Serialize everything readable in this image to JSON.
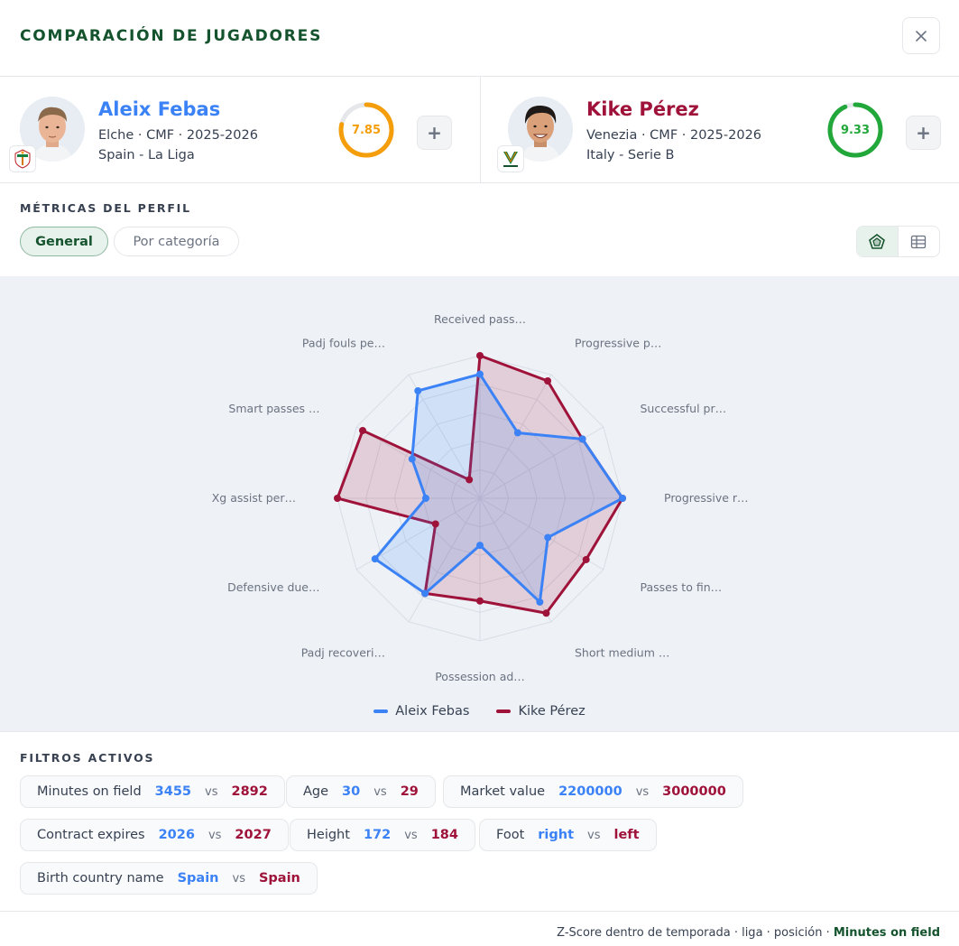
{
  "header": {
    "title": "COMPARACIÓN DE JUGADORES"
  },
  "players": [
    {
      "name": "Aleix Febas",
      "line1": "Elche · CMF · 2025-2026",
      "line2": "Spain - La Liga",
      "score": "7.85",
      "score_fraction": 0.785,
      "score_color": "#f59e0b",
      "name_color": "#3b82f6"
    },
    {
      "name": "Kike Pérez",
      "line1": "Venezia · CMF · 2025-2026",
      "line2": "Italy - Serie B",
      "score": "9.33",
      "score_fraction": 0.933,
      "score_color": "#22a83a",
      "name_color": "#9f1239"
    }
  ],
  "metrics": {
    "label": "MÉTRICAS DEL PERFIL",
    "tab_general": "General",
    "tab_category": "Por categoría"
  },
  "chart_data": {
    "type": "radar",
    "axes": [
      "Received pass…",
      "Progressive p…",
      "Successful pr…",
      "Progressive r…",
      "Passes to fin…",
      "Short medium …",
      "Possession ad…",
      "Padj recoveri…",
      "Defensive due…",
      "Xg assist per…",
      "Smart passes …",
      "Padj fouls pe…"
    ],
    "series": [
      {
        "name": "Aleix Febas",
        "color": "#3b82f6",
        "values": [
          0.87,
          0.53,
          0.83,
          1.0,
          0.55,
          0.84,
          0.33,
          0.77,
          0.85,
          0.38,
          0.55,
          0.87
        ]
      },
      {
        "name": "Kike Pérez",
        "color": "#9f1239",
        "values": [
          1.0,
          0.95,
          0.83,
          1.0,
          0.86,
          0.93,
          0.72,
          0.77,
          0.36,
          1.0,
          0.95,
          0.15
        ]
      }
    ]
  },
  "filters": {
    "label": "FILTROS ACTIVOS",
    "vs": "vs",
    "items": [
      {
        "name": "Minutes on field",
        "v1": "3455",
        "v2": "2892"
      },
      {
        "name": "Age",
        "v1": "30",
        "v2": "29"
      },
      {
        "name": "Market value",
        "v1": "2200000",
        "v2": "3000000"
      },
      {
        "name": "Contract expires",
        "v1": "2026",
        "v2": "2027"
      },
      {
        "name": "Height",
        "v1": "172",
        "v2": "184"
      },
      {
        "name": "Foot",
        "v1": "right",
        "v2": "left"
      },
      {
        "name": "Birth country name",
        "v1": "Spain",
        "v2": "Spain"
      }
    ]
  },
  "footer": {
    "text": "Z-Score dentro de temporada · liga · posición · ",
    "strong": "Minutes on field"
  },
  "icons": {
    "close": "close-icon",
    "radar_view": "radar-view-icon",
    "table_view": "table-view-icon",
    "add": "plus-icon"
  }
}
